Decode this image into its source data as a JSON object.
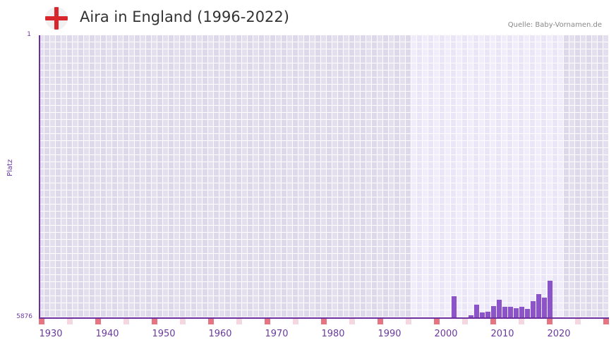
{
  "header": {
    "title": "Aira in England (1996-2022)",
    "flag_icon": "england-flag-icon",
    "source": "Quelle: Baby-Vornamen.de"
  },
  "colors": {
    "accent": "#6b2fa0",
    "bar": "#8b55c9",
    "bg_dark": "#e3dfee",
    "bg_light": "#f0ecfa",
    "marker_decade": "#e57582",
    "marker_half": "#f5d7e0"
  },
  "chart_data": {
    "type": "bar",
    "title": "Aira in England (1996-2022)",
    "xlabel": "",
    "ylabel": "Platz",
    "y_inverted": true,
    "ylim": [
      1,
      5876
    ],
    "ytick_labels": [
      "1",
      "5876"
    ],
    "xlim": [
      1928,
      2028
    ],
    "xtick_labels": [
      "1930",
      "1940",
      "1950",
      "1960",
      "1970",
      "1980",
      "1990",
      "2000",
      "2010",
      "2020"
    ],
    "highlight_range": [
      1996,
      2022
    ],
    "grid": true,
    "legend": null,
    "categories": [
      2005,
      2008,
      2009,
      2010,
      2011,
      2012,
      2013,
      2014,
      2015,
      2016,
      2017,
      2018,
      2019,
      2020,
      2021,
      2022
    ],
    "series": [
      {
        "name": "Platz",
        "values": [
          5435,
          5832,
          5612,
          5773,
          5758,
          5641,
          5509,
          5656,
          5656,
          5685,
          5656,
          5700,
          5538,
          5391,
          5465,
          5112
        ]
      }
    ]
  }
}
